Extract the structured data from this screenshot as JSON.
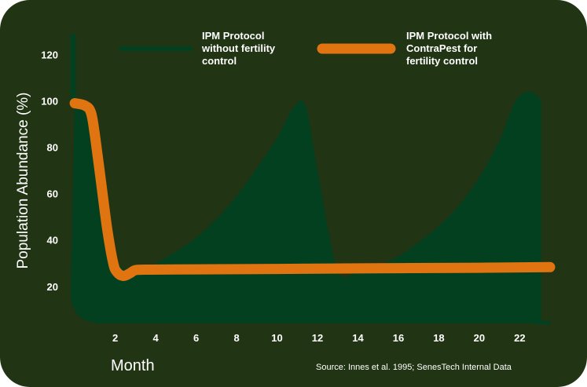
{
  "chart_data": {
    "type": "area",
    "xlabel": "Month",
    "ylabel": "Population Abundance (%)",
    "x_ticks": [
      "2",
      "4",
      "6",
      "8",
      "10",
      "12",
      "14",
      "16",
      "18",
      "20",
      "22"
    ],
    "y_ticks": [
      "20",
      "40",
      "60",
      "80",
      "100",
      "120"
    ],
    "xlim": [
      -0.2,
      23.5
    ],
    "ylim": [
      4,
      130
    ],
    "grid": false,
    "legend_position": "top",
    "source": "Source: Innes et al. 1995; SenesTech Internal Data",
    "series": [
      {
        "name": "IPM Protocol without fertility control",
        "style": "area",
        "color": "#034020",
        "x": [
          0,
          0.5,
          1,
          1.5,
          2,
          2.5,
          3,
          4,
          5,
          6,
          7,
          8,
          9,
          10,
          10.8,
          11.4,
          12,
          13,
          14,
          15,
          16,
          17,
          18,
          19,
          20,
          21,
          21.8,
          22.5,
          23
        ],
        "y": [
          100,
          98,
          80,
          55,
          33,
          27,
          26,
          30,
          35,
          41,
          49,
          59,
          71,
          84,
          97,
          98,
          70,
          27,
          27,
          29,
          33,
          39,
          46,
          55,
          67,
          83,
          100,
          104,
          101
        ]
      },
      {
        "name": "IPM Protocol with ContraPest for fertility control",
        "style": "line",
        "color": "#e07410",
        "x": [
          0,
          0.5,
          0.8,
          1,
          1.3,
          1.6,
          1.9,
          2.1,
          2.4,
          2.7,
          3.0,
          3.5,
          5,
          10,
          15,
          20,
          23.5
        ],
        "y": [
          99,
          98,
          95,
          85,
          65,
          45,
          30,
          26,
          24.5,
          25.5,
          27,
          27.2,
          27.3,
          27.5,
          27.8,
          28,
          28.3
        ]
      }
    ]
  }
}
